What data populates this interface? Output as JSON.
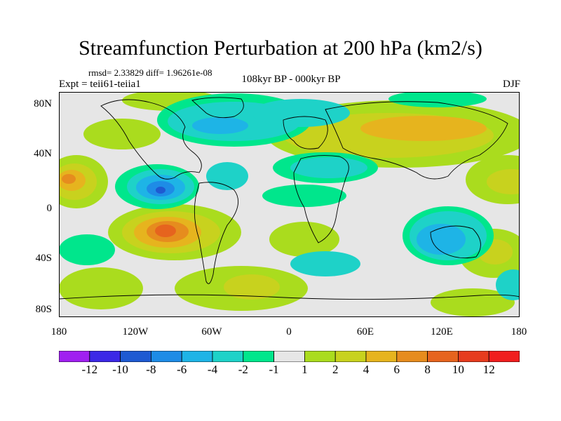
{
  "header": {
    "title": "Streamfunction Perturbation at 200 hPa (km2/s)",
    "stats": "rmsd= 2.33829 diff= 1.96261e-08",
    "experiment": "Expt = teii61-teiia1",
    "period": "108kyr BP - 000kyr BP",
    "season": "DJF"
  },
  "axes": {
    "lat_labels": [
      "80N",
      "40N",
      "0",
      "40S",
      "80S"
    ],
    "lon_labels": [
      "180",
      "120W",
      "60W",
      "0",
      "60E",
      "120E",
      "180"
    ]
  },
  "colorbar": {
    "labels": [
      "-12",
      "-10",
      "-8",
      "-6",
      "-4",
      "-2",
      "-1",
      "1",
      "2",
      "4",
      "6",
      "8",
      "10",
      "12"
    ],
    "colors": [
      "#a020f0",
      "#3c28e6",
      "#1e5ad2",
      "#1e8ce6",
      "#1eb4e6",
      "#1ed2c8",
      "#00e68c",
      "#e6e6e6",
      "#aadc1e",
      "#c8d21e",
      "#e6b41e",
      "#e68c1e",
      "#e6641e",
      "#e63c1e",
      "#f01e1e"
    ]
  }
}
